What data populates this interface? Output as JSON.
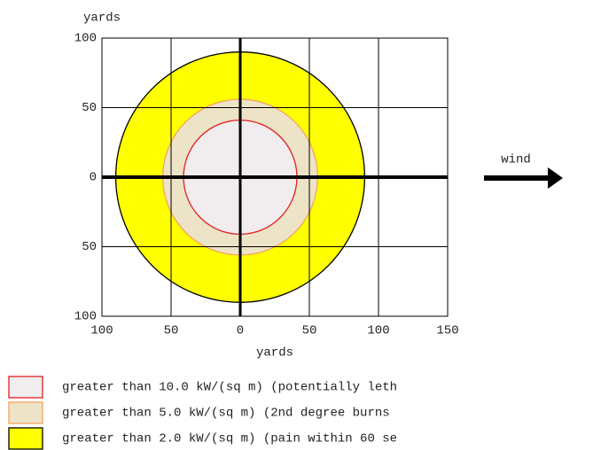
{
  "chart_data": {
    "type": "threat_zone",
    "xlabel": "yards",
    "ylabel": "yards",
    "xlim": [
      -100,
      150
    ],
    "ylim": [
      -100,
      100
    ],
    "xticks": [
      {
        "value": -100,
        "label": "100"
      },
      {
        "value": -50,
        "label": "50"
      },
      0,
      50,
      100,
      150
    ],
    "yticks": [
      {
        "value": -100,
        "label": "100"
      },
      {
        "value": -50,
        "label": "50"
      },
      0,
      50,
      100
    ],
    "grid": true,
    "annotation": "wind",
    "series": [
      {
        "name": "greater than 2.0 kW/(sq m) (pain within 60 se",
        "color": "#ffff00",
        "edge": "#000000",
        "radius": 90
      },
      {
        "name": "greater than 5.0 kW/(sq m) (2nd degree burns",
        "color": "#ede3c6",
        "edge": "#f4a460",
        "radius": 56
      },
      {
        "name": "greater than 10.0 kW/(sq m) (potentially leth",
        "color": "#f1ecee",
        "edge": "#e02020",
        "radius": 41
      }
    ]
  }
}
